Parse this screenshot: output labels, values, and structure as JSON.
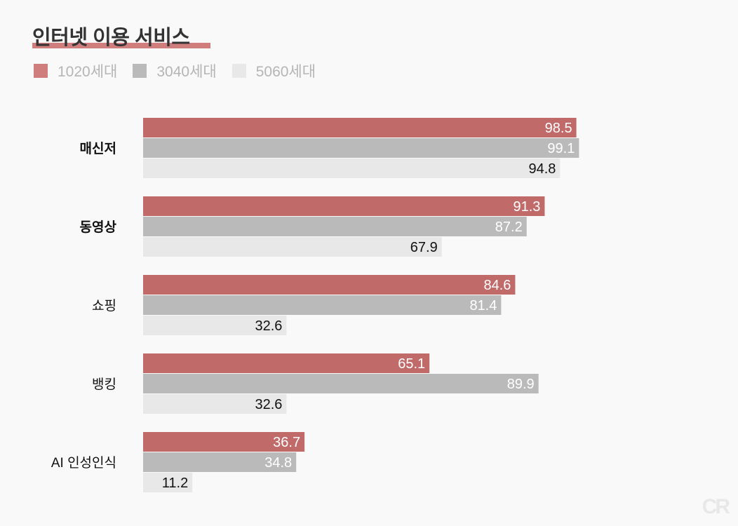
{
  "chart_data": {
    "type": "bar",
    "orientation": "horizontal",
    "title": "인터넷 이용 서비스",
    "categories": [
      "매신저",
      "동영상",
      "쇼핑",
      "뱅킹",
      "AI 인성인식"
    ],
    "series": [
      {
        "name": "1020세대",
        "color": "#c06a6a",
        "values": [
          98.5,
          91.3,
          84.6,
          65.1,
          36.7
        ]
      },
      {
        "name": "3040세대",
        "color": "#bababa",
        "values": [
          99.1,
          87.2,
          81.4,
          89.9,
          34.8
        ]
      },
      {
        "name": "5060세대",
        "color": "#e8e8e8",
        "values": [
          94.8,
          67.9,
          32.6,
          32.6,
          11.2
        ]
      }
    ],
    "xlim": [
      0,
      100
    ],
    "grid": false,
    "legend": "top-left"
  },
  "logo": "CR"
}
